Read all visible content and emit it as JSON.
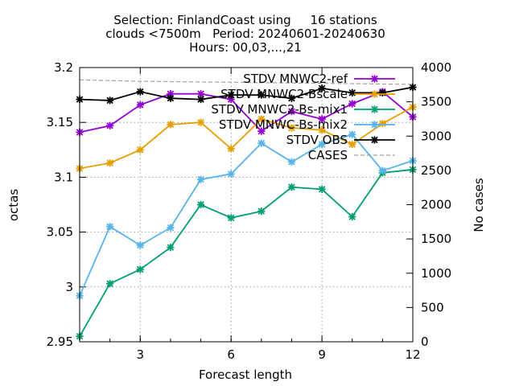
{
  "chart_data": {
    "type": "line",
    "title_lines": [
      "Selection: FinlandCoast using     16 stations",
      "clouds <7500m   Period: 20240601-20240630",
      "Hours: 00,03,...,21"
    ],
    "xlabel": "Forecast length",
    "ylabel": "octas",
    "y2label": "No cases",
    "xlim": [
      1,
      12
    ],
    "ylim": [
      2.95,
      3.2
    ],
    "y2lim": [
      0,
      4000
    ],
    "xticks": [
      "3",
      "6",
      "9",
      "12"
    ],
    "yticks": [
      "2.95",
      "3",
      "3.05",
      "3.1",
      "3.15",
      "3.2"
    ],
    "y2ticks": [
      "0",
      "500",
      "1000",
      "1500",
      "2000",
      "2500",
      "3000",
      "3500",
      "4000"
    ],
    "grid": true,
    "legend_position": "top-right",
    "x": [
      1,
      2,
      3,
      4,
      5,
      6,
      7,
      8,
      9,
      10,
      11,
      12
    ],
    "series": [
      {
        "name": "STDV MNWC2-ref",
        "color": "#9400d3",
        "axis": "y",
        "values": [
          3.141,
          3.147,
          3.166,
          3.176,
          3.176,
          3.171,
          3.142,
          3.16,
          3.153,
          3.167,
          3.178,
          3.155
        ]
      },
      {
        "name": "STDV MNWC2-Bscale",
        "color": "#e69f00",
        "axis": "y",
        "values": [
          3.108,
          3.113,
          3.125,
          3.148,
          3.15,
          3.126,
          3.153,
          3.145,
          3.143,
          3.13,
          3.149,
          3.164
        ]
      },
      {
        "name": "STDV MNWC2-Bs-mix1",
        "color": "#009e73",
        "axis": "y",
        "values": [
          2.955,
          3.003,
          3.016,
          3.036,
          3.075,
          3.063,
          3.069,
          3.091,
          3.089,
          3.064,
          3.104,
          3.107
        ]
      },
      {
        "name": "STDV MNWC-Bs-mix2",
        "color": "#56b4e9",
        "axis": "y",
        "values": [
          2.992,
          3.055,
          3.038,
          3.054,
          3.098,
          3.103,
          3.131,
          3.114,
          3.13,
          3.139,
          3.106,
          3.115
        ]
      },
      {
        "name": "STDV OBS",
        "color": "#000000",
        "axis": "y",
        "values": [
          3.171,
          3.17,
          3.178,
          3.172,
          3.171,
          3.175,
          3.175,
          3.172,
          3.181,
          3.177,
          3.177,
          3.182
        ]
      },
      {
        "name": "CASES",
        "color": "#a0a0a0",
        "axis": "y2",
        "dashed": true,
        "values": [
          3820,
          3810,
          3800,
          3795,
          3790,
          3785,
          3780,
          3775,
          3770,
          3765,
          3760,
          3755
        ]
      }
    ]
  }
}
